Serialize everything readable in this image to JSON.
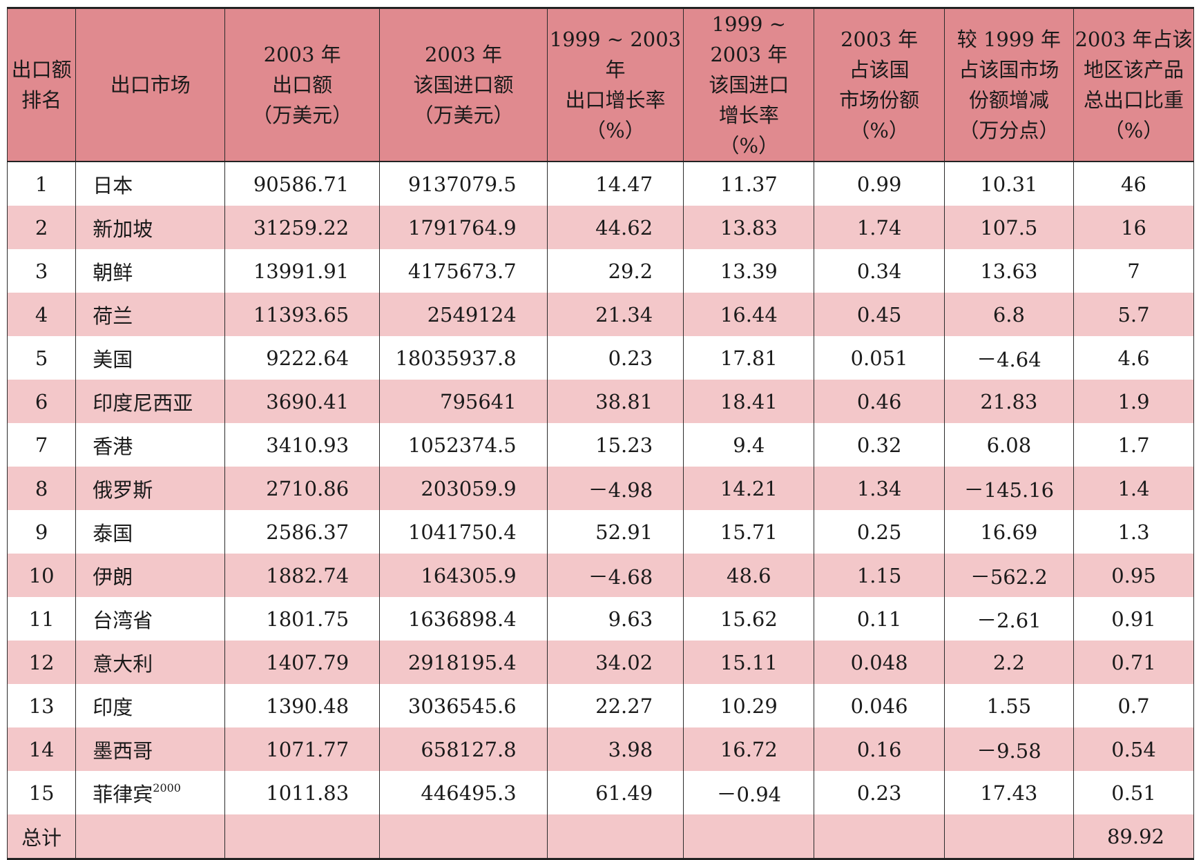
{
  "headers": [
    [
      "出口额",
      "排名"
    ],
    [
      "出口市场"
    ],
    [
      "2003 年",
      "出口额",
      "（万美元）"
    ],
    [
      "2003 年",
      "该国进口额",
      "（万美元）"
    ],
    [
      "1999 ~ 2003 年",
      "出口增长率",
      "（%）"
    ],
    [
      "1999 ~ 2003 年",
      "该国进口",
      "增长率",
      "（%）"
    ],
    [
      "2003 年",
      "占该国",
      "市场份额",
      "（%）"
    ],
    [
      "较 1999 年",
      "占该国市场",
      "份额增减",
      "（万分点）"
    ],
    [
      "2003 年占该",
      "地区该产品",
      "总出口比重",
      "（%）"
    ]
  ],
  "rows": [
    {
      "rank": "1",
      "market": "日本",
      "sup": "",
      "export": "90586.71",
      "import": "9137079.5",
      "export_growth": "14.47",
      "import_growth": "11.37",
      "share": "0.99",
      "share_change": "10.31",
      "proportion": "46"
    },
    {
      "rank": "2",
      "market": "新加坡",
      "sup": "",
      "export": "31259.22",
      "import": "1791764.9",
      "export_growth": "44.62",
      "import_growth": "13.83",
      "share": "1.74",
      "share_change": "107.5",
      "proportion": "16"
    },
    {
      "rank": "3",
      "market": "朝鲜",
      "sup": "",
      "export": "13991.91",
      "import": "4175673.7",
      "export_growth": "29.2",
      "import_growth": "13.39",
      "share": "0.34",
      "share_change": "13.63",
      "proportion": "7"
    },
    {
      "rank": "4",
      "market": "荷兰",
      "sup": "",
      "export": "11393.65",
      "import": "2549124",
      "export_growth": "21.34",
      "import_growth": "16.44",
      "share": "0.45",
      "share_change": "6.8",
      "proportion": "5.7"
    },
    {
      "rank": "5",
      "market": "美国",
      "sup": "",
      "export": "9222.64",
      "import": "18035937.8",
      "export_growth": "0.23",
      "import_growth": "17.81",
      "share": "0.051",
      "share_change": "－4.64",
      "proportion": "4.6"
    },
    {
      "rank": "6",
      "market": "印度尼西亚",
      "sup": "",
      "export": "3690.41",
      "import": "795641",
      "export_growth": "38.81",
      "import_growth": "18.41",
      "share": "0.46",
      "share_change": "21.83",
      "proportion": "1.9"
    },
    {
      "rank": "7",
      "market": "香港",
      "sup": "",
      "export": "3410.93",
      "import": "1052374.5",
      "export_growth": "15.23",
      "import_growth": "9.4",
      "share": "0.32",
      "share_change": "6.08",
      "proportion": "1.7"
    },
    {
      "rank": "8",
      "market": "俄罗斯",
      "sup": "",
      "export": "2710.86",
      "import": "203059.9",
      "export_growth": "－4.98",
      "import_growth": "14.21",
      "share": "1.34",
      "share_change": "－145.16",
      "proportion": "1.4"
    },
    {
      "rank": "9",
      "market": "泰国",
      "sup": "",
      "export": "2586.37",
      "import": "1041750.4",
      "export_growth": "52.91",
      "import_growth": "15.71",
      "share": "0.25",
      "share_change": "16.69",
      "proportion": "1.3"
    },
    {
      "rank": "10",
      "market": "伊朗",
      "sup": "",
      "export": "1882.74",
      "import": "164305.9",
      "export_growth": "－4.68",
      "import_growth": "48.6",
      "share": "1.15",
      "share_change": "－562.2",
      "proportion": "0.95"
    },
    {
      "rank": "11",
      "market": "台湾省",
      "sup": "",
      "export": "1801.75",
      "import": "1636898.4",
      "export_growth": "9.63",
      "import_growth": "15.62",
      "share": "0.11",
      "share_change": "－2.61",
      "proportion": "0.91"
    },
    {
      "rank": "12",
      "market": "意大利",
      "sup": "",
      "export": "1407.79",
      "import": "2918195.4",
      "export_growth": "34.02",
      "import_growth": "15.11",
      "share": "0.048",
      "share_change": "2.2",
      "proportion": "0.71"
    },
    {
      "rank": "13",
      "market": "印度",
      "sup": "",
      "export": "1390.48",
      "import": "3036545.6",
      "export_growth": "22.27",
      "import_growth": "10.29",
      "share": "0.046",
      "share_change": "1.55",
      "proportion": "0.7"
    },
    {
      "rank": "14",
      "market": "墨西哥",
      "sup": "",
      "export": "1071.77",
      "import": "658127.8",
      "export_growth": "3.98",
      "import_growth": "16.72",
      "share": "0.16",
      "share_change": "－9.58",
      "proportion": "0.54"
    },
    {
      "rank": "15",
      "market": "菲律宾",
      "sup": "2000",
      "export": "1011.83",
      "import": "446495.3",
      "export_growth": "61.49",
      "import_growth": "－0.94",
      "share": "0.23",
      "share_change": "17.43",
      "proportion": "0.51"
    }
  ],
  "total": {
    "label": "总计",
    "proportion": "89.92"
  }
}
